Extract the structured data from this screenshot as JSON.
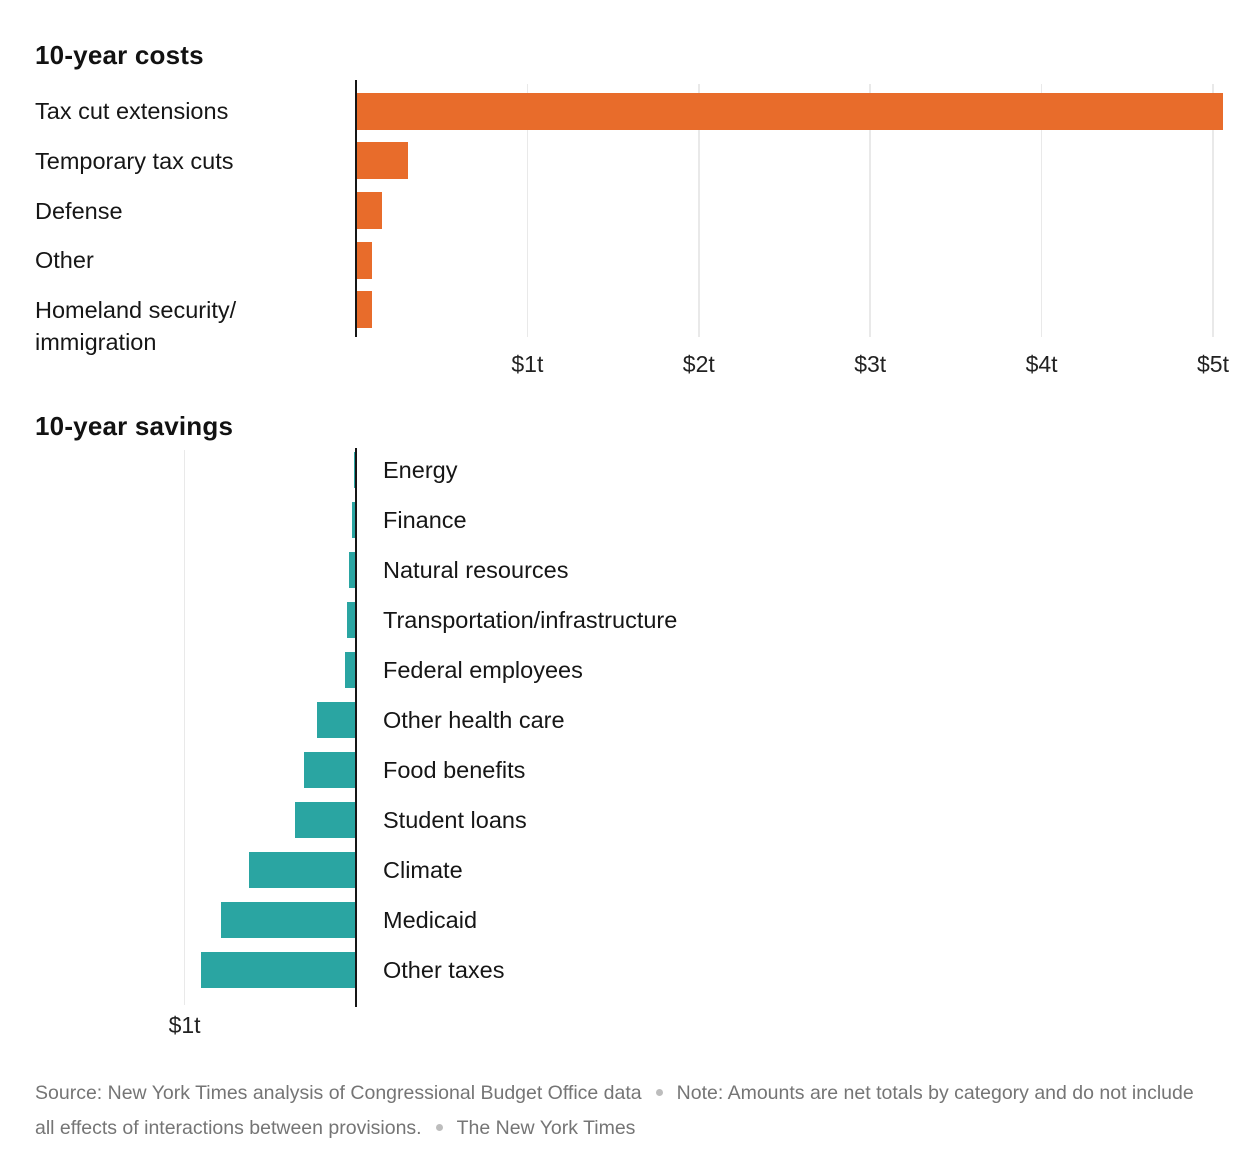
{
  "colors": {
    "costs_bar": "#e86c2b",
    "savings_bar": "#2aa5a2",
    "axis": "#161616",
    "gridline": "#e9e9e9",
    "label_text": "#161616",
    "footer_text": "#757575",
    "footer_dot": "#bdbdbd"
  },
  "chart_data": [
    {
      "id": "costs",
      "type": "bar",
      "orientation": "horizontal-right",
      "title": "10-year costs",
      "unit": "trillions of dollars",
      "categories": [
        "Tax cut extensions",
        "Temporary tax cuts",
        "Defense",
        "Other",
        "Homeland security/\nimmigration"
      ],
      "values": [
        5.05,
        0.3,
        0.145,
        0.09,
        0.085
      ],
      "bar_color": "#e86c2b",
      "x_ticks": [
        {
          "value": 1,
          "label": "$1t"
        },
        {
          "value": 2,
          "label": "$2t"
        },
        {
          "value": 3,
          "label": "$3t"
        },
        {
          "value": 4,
          "label": "$4t"
        },
        {
          "value": 5,
          "label": "$5t"
        }
      ],
      "xlim": [
        0,
        5.2
      ],
      "gridlines": true,
      "legend": "none"
    },
    {
      "id": "savings",
      "type": "bar",
      "orientation": "horizontal-left",
      "title": "10-year savings",
      "unit": "trillions of dollars",
      "categories": [
        "Energy",
        "Finance",
        "Natural resources",
        "Transportation/infrastructure",
        "Federal employees",
        "Other health care",
        "Food benefits",
        "Student loans",
        "Climate",
        "Medicaid",
        "Other taxes"
      ],
      "values": [
        0.005,
        0.02,
        0.035,
        0.045,
        0.06,
        0.22,
        0.3,
        0.35,
        0.62,
        0.78,
        0.9
      ],
      "bar_color": "#2aa5a2",
      "x_ticks": [
        {
          "value": 1,
          "label": "$1t"
        }
      ],
      "xlim": [
        0,
        1.05
      ],
      "gridlines": true,
      "legend": "none"
    }
  ],
  "footer": {
    "source": "Source: New York Times analysis of Congressional Budget Office data",
    "note": "Note: Amounts are net totals by category and do not include all effects of interactions between provisions.",
    "credit": "The New York Times",
    "separator": "•"
  }
}
